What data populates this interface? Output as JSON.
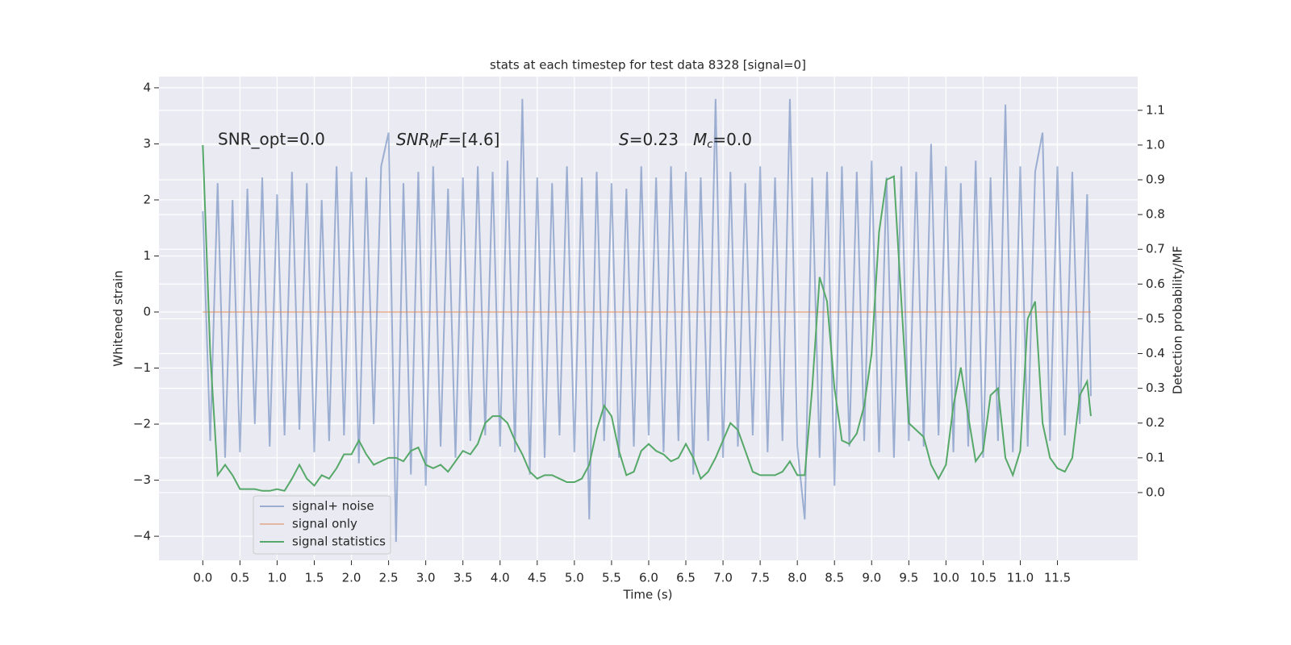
{
  "chart_data": {
    "type": "line",
    "title": "stats at each timestep for test data 8328 [signal=0]",
    "xlabel": "Time (s)",
    "ylabel": "Whitened strain",
    "y2label": "Detection probability/MF",
    "annotations": [
      [
        "SNR_opt=0.0"
      ],
      [
        "SNR",
        "M",
        "F",
        "=[4.6]"
      ],
      [
        "S",
        "=0.23"
      ],
      [
        "M",
        "c",
        "=0.0"
      ]
    ],
    "x": [
      0.0,
      0.1,
      0.2,
      0.3,
      0.4,
      0.5,
      0.6,
      0.7,
      0.8,
      0.9,
      1.0,
      1.1,
      1.2,
      1.3,
      1.4,
      1.5,
      1.6,
      1.7,
      1.8,
      1.9,
      2.0,
      2.1,
      2.2,
      2.3,
      2.4,
      2.5,
      2.6,
      2.7,
      2.8,
      2.9,
      3.0,
      3.1,
      3.2,
      3.3,
      3.4,
      3.5,
      3.6,
      3.7,
      3.8,
      3.9,
      4.0,
      4.1,
      4.2,
      4.3,
      4.4,
      4.5,
      4.6,
      4.7,
      4.8,
      4.9,
      5.0,
      5.1,
      5.2,
      5.3,
      5.4,
      5.5,
      5.6,
      5.7,
      5.8,
      5.9,
      6.0,
      6.1,
      6.2,
      6.3,
      6.4,
      6.5,
      6.6,
      6.7,
      6.8,
      6.9,
      7.0,
      7.1,
      7.2,
      7.3,
      7.4,
      7.5,
      7.6,
      7.7,
      7.8,
      7.9,
      8.0,
      8.1,
      8.2,
      8.3,
      8.4,
      8.5,
      8.6,
      8.7,
      8.8,
      8.9,
      9.0,
      9.1,
      9.2,
      9.3,
      9.4,
      9.5,
      9.6,
      9.7,
      9.8,
      9.9,
      10.0,
      10.1,
      10.2,
      10.3,
      10.4,
      10.5,
      10.6,
      10.7,
      10.8,
      10.9,
      11.0,
      11.1,
      11.2,
      11.3,
      11.4,
      11.5,
      11.6,
      11.7,
      11.8,
      11.9,
      11.95
    ],
    "series": [
      {
        "name": "signal+ noise",
        "color": "#4c72b0",
        "opacity": 0.5,
        "values": [
          1.8,
          -2.3,
          2.3,
          -2.6,
          2.0,
          -2.5,
          2.2,
          -2.0,
          2.4,
          -2.4,
          2.1,
          -2.2,
          2.5,
          -2.1,
          2.3,
          -2.5,
          2.0,
          -2.3,
          2.6,
          -2.2,
          2.5,
          -2.7,
          2.4,
          -2.0,
          2.6,
          3.2,
          -4.1,
          2.3,
          -2.9,
          2.5,
          -3.1,
          2.6,
          -2.4,
          2.2,
          -2.6,
          2.4,
          -2.3,
          2.6,
          -2.2,
          2.5,
          -2.4,
          2.7,
          -2.5,
          3.8,
          -2.9,
          2.4,
          -2.6,
          2.3,
          -2.2,
          2.6,
          -2.5,
          2.4,
          -3.7,
          2.5,
          -2.3,
          2.3,
          -2.6,
          2.2,
          -2.4,
          2.6,
          -2.2,
          2.4,
          -2.5,
          2.6,
          -2.3,
          2.5,
          -2.9,
          2.4,
          -2.3,
          3.8,
          -2.6,
          2.5,
          -2.4,
          2.3,
          -2.2,
          2.6,
          -2.5,
          2.4,
          -2.3,
          3.8,
          -2.4,
          -3.7,
          2.4,
          -2.6,
          2.5,
          -3.1,
          2.6,
          -2.4,
          2.5,
          -2.3,
          2.7,
          -2.5,
          2.4,
          -2.6,
          2.6,
          -2.3,
          2.5,
          -2.4,
          3.0,
          -2.2,
          2.6,
          -2.5,
          2.3,
          -2.4,
          2.7,
          -2.6,
          2.4,
          -2.3,
          3.7,
          -2.5,
          2.6,
          -2.4,
          2.5,
          3.2,
          -2.3,
          2.6,
          -2.2,
          2.5,
          -2.0,
          2.1,
          -1.5
        ]
      },
      {
        "name": "signal only",
        "color": "#dd8452",
        "opacity": 0.5,
        "x": [
          0.0,
          11.95
        ],
        "values": [
          0,
          0
        ]
      },
      {
        "name": "signal statistics",
        "color": "#55a868",
        "opacity": 1,
        "axis": "y2",
        "values": [
          1.0,
          0.4,
          0.05,
          0.08,
          0.05,
          0.01,
          0.01,
          0.01,
          0.005,
          0.005,
          0.01,
          0.005,
          0.04,
          0.08,
          0.04,
          0.02,
          0.05,
          0.04,
          0.07,
          0.11,
          0.11,
          0.15,
          0.11,
          0.08,
          0.09,
          0.1,
          0.1,
          0.09,
          0.12,
          0.13,
          0.08,
          0.07,
          0.08,
          0.06,
          0.09,
          0.12,
          0.11,
          0.14,
          0.2,
          0.22,
          0.22,
          0.2,
          0.15,
          0.11,
          0.06,
          0.04,
          0.05,
          0.05,
          0.04,
          0.03,
          0.03,
          0.04,
          0.08,
          0.18,
          0.25,
          0.22,
          0.12,
          0.05,
          0.06,
          0.12,
          0.14,
          0.12,
          0.11,
          0.09,
          0.1,
          0.14,
          0.1,
          0.04,
          0.06,
          0.1,
          0.15,
          0.2,
          0.18,
          0.12,
          0.06,
          0.05,
          0.05,
          0.05,
          0.06,
          0.09,
          0.05,
          0.05,
          0.3,
          0.62,
          0.55,
          0.3,
          0.15,
          0.14,
          0.17,
          0.25,
          0.4,
          0.75,
          0.9,
          0.91,
          0.55,
          0.2,
          0.18,
          0.16,
          0.08,
          0.04,
          0.08,
          0.25,
          0.36,
          0.22,
          0.09,
          0.12,
          0.28,
          0.3,
          0.1,
          0.05,
          0.12,
          0.5,
          0.55,
          0.2,
          0.1,
          0.07,
          0.06,
          0.1,
          0.28,
          0.32,
          0.22
        ]
      }
    ],
    "xlim": [
      -0.59,
      12.58
    ],
    "ylim": [
      -4.43,
      4.2
    ],
    "y2lim": [
      -0.195,
      1.197
    ],
    "xticks": [
      {
        "value": 0,
        "label": "0.0"
      },
      0.5,
      {
        "value": 1,
        "label": "1.0"
      },
      1.5,
      {
        "value": 2,
        "label": "2.0"
      },
      2.5,
      {
        "value": 3,
        "label": "3.0"
      },
      3.5,
      {
        "value": 4,
        "label": "4.0"
      },
      4.5,
      {
        "value": 5,
        "label": "5.0"
      },
      5.5,
      {
        "value": 6,
        "label": "6.0"
      },
      6.5,
      {
        "value": 7,
        "label": "7.0"
      },
      7.5,
      {
        "value": 8,
        "label": "8.0"
      },
      8.5,
      {
        "value": 9,
        "label": "9.0"
      },
      9.5,
      {
        "value": 10,
        "label": "10.0"
      },
      10.5,
      {
        "value": 11,
        "label": "11.0"
      },
      11.5
    ],
    "yticks": [
      {
        "value": -4,
        "label": "−4"
      },
      {
        "value": -3,
        "label": "−3"
      },
      {
        "value": -2,
        "label": "−2"
      },
      {
        "value": -1,
        "label": "−1"
      },
      0,
      1,
      2,
      3,
      4
    ],
    "y2ticks": [
      {
        "value": 0,
        "label": "0.0"
      },
      0.1,
      0.2,
      0.3,
      0.4,
      0.5,
      0.6,
      0.7,
      0.8,
      0.9,
      {
        "value": 1,
        "label": "1.0"
      },
      1.1
    ],
    "grid": true,
    "legend": "lower left"
  }
}
